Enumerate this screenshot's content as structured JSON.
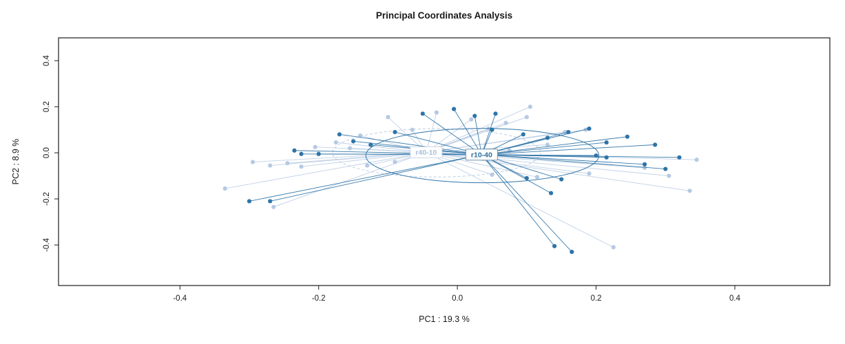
{
  "chart_data": {
    "type": "scatter",
    "title": "Principal Coordinates Analysis",
    "xlabel": "PC1 :  19.3 %",
    "ylabel": "PC2 :  8.9 %",
    "xlim": [
      -0.575,
      0.537
    ],
    "ylim": [
      -0.576,
      0.499
    ],
    "x_ticks": [
      -0.4,
      -0.2,
      0.0,
      0.2,
      0.4
    ],
    "y_ticks": [
      -0.4,
      -0.2,
      0.0,
      0.2,
      0.4
    ],
    "grid": false,
    "legend_position": "none",
    "plot_style": "ordination-spider",
    "groups": [
      {
        "name": "r40-10",
        "point_color": "#b6c9e3",
        "line_color": "#bccde5",
        "label_text_color": "#a9bedd",
        "label_border_color": "#ccd7e8",
        "centroid": [
          -0.045,
          0.002
        ],
        "ellipse": {
          "cx": -0.03,
          "cy": 0.0,
          "rx": 0.15,
          "ry": 0.105,
          "style": "dashed"
        },
        "points": [
          [
            -0.335,
            -0.155
          ],
          [
            -0.295,
            -0.04
          ],
          [
            -0.27,
            -0.055
          ],
          [
            -0.265,
            -0.235
          ],
          [
            -0.245,
            -0.045
          ],
          [
            -0.225,
            -0.06
          ],
          [
            -0.205,
            0.025
          ],
          [
            -0.175,
            0.045
          ],
          [
            -0.155,
            0.02
          ],
          [
            -0.14,
            0.075
          ],
          [
            -0.1,
            0.155
          ],
          [
            -0.065,
            0.1
          ],
          [
            -0.03,
            0.175
          ],
          [
            0.02,
            0.145
          ],
          [
            0.045,
            0.105
          ],
          [
            0.07,
            0.13
          ],
          [
            0.105,
            0.2
          ],
          [
            0.1,
            0.155
          ],
          [
            0.155,
            0.09
          ],
          [
            0.185,
            0.1
          ],
          [
            0.13,
            0.035
          ],
          [
            0.075,
            0.01
          ],
          [
            -0.09,
            -0.04
          ],
          [
            -0.13,
            -0.055
          ],
          [
            0.05,
            -0.095
          ],
          [
            0.115,
            -0.105
          ],
          [
            0.19,
            -0.09
          ],
          [
            0.225,
            -0.41
          ],
          [
            0.27,
            -0.065
          ],
          [
            0.305,
            -0.1
          ],
          [
            0.335,
            -0.165
          ],
          [
            0.345,
            -0.03
          ]
        ]
      },
      {
        "name": "r10-40",
        "point_color": "#2e74a8",
        "line_color": "#2e74a8",
        "label_text_color": "#2a6e9e",
        "label_border_color": "#7494ad",
        "centroid": [
          0.035,
          -0.008
        ],
        "ellipse": {
          "cx": 0.036,
          "cy": -0.012,
          "rx": 0.168,
          "ry": 0.118,
          "style": "solid"
        },
        "points": [
          [
            -0.3,
            -0.21
          ],
          [
            -0.27,
            -0.21
          ],
          [
            -0.235,
            0.01
          ],
          [
            -0.225,
            -0.005
          ],
          [
            -0.2,
            -0.005
          ],
          [
            -0.17,
            0.08
          ],
          [
            -0.15,
            0.05
          ],
          [
            -0.125,
            0.035
          ],
          [
            -0.09,
            0.09
          ],
          [
            -0.05,
            0.17
          ],
          [
            -0.005,
            0.19
          ],
          [
            0.025,
            0.16
          ],
          [
            0.055,
            0.17
          ],
          [
            0.05,
            0.1
          ],
          [
            0.095,
            0.08
          ],
          [
            0.13,
            0.065
          ],
          [
            0.16,
            0.09
          ],
          [
            0.19,
            0.105
          ],
          [
            0.215,
            0.045
          ],
          [
            0.245,
            0.07
          ],
          [
            0.2,
            -0.012
          ],
          [
            0.215,
            -0.02
          ],
          [
            0.1,
            -0.11
          ],
          [
            0.15,
            -0.115
          ],
          [
            0.135,
            -0.175
          ],
          [
            0.14,
            -0.405
          ],
          [
            0.165,
            -0.43
          ],
          [
            0.27,
            -0.05
          ],
          [
            0.3,
            -0.07
          ],
          [
            0.32,
            -0.02
          ],
          [
            0.285,
            0.035
          ]
        ]
      }
    ],
    "axis_color": "#1a1a1a"
  }
}
